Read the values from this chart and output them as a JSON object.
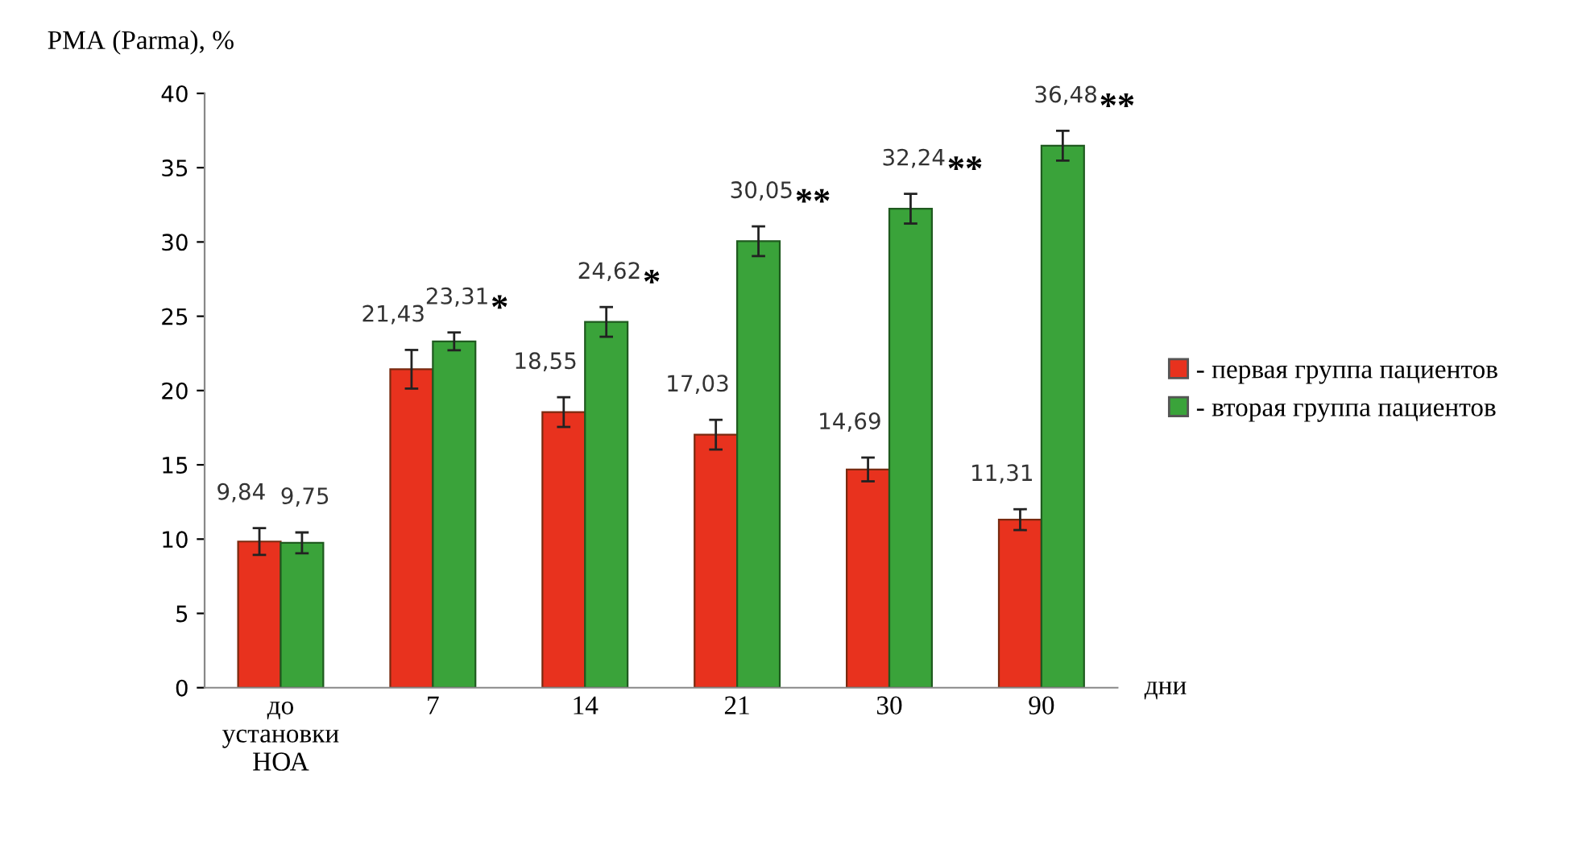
{
  "chart_data": {
    "type": "bar",
    "ylabel": "РМА (Parma), %",
    "xlabel": "дни",
    "categories": [
      "до\nустановки\nНОА",
      "7",
      "14",
      "21",
      "30",
      "90"
    ],
    "series": [
      {
        "name": "- первая группа пациентов",
        "color": "#e8321e",
        "values": [
          9.84,
          21.43,
          18.55,
          17.03,
          14.69,
          11.31
        ],
        "errors": [
          0.9,
          1.3,
          1.0,
          1.0,
          0.8,
          0.7
        ],
        "value_labels": [
          "9,84",
          "21,43",
          "18,55",
          "17,03",
          "14,69",
          "11,31"
        ]
      },
      {
        "name": "- вторая группа пациентов",
        "color": "#3aa33a",
        "values": [
          9.75,
          23.31,
          24.62,
          30.05,
          32.24,
          36.48
        ],
        "errors": [
          0.7,
          0.6,
          1.0,
          1.0,
          1.0,
          1.0
        ],
        "value_labels": [
          "9,75",
          "23,31",
          "24,62",
          "30,05",
          "32,24",
          "36,48"
        ]
      }
    ],
    "ylim": [
      0,
      40
    ],
    "yticks": [
      0,
      5,
      10,
      15,
      20,
      25,
      30,
      35,
      40
    ],
    "annotations": [
      "*",
      "*",
      "**",
      "**",
      "**"
    ],
    "grid": false,
    "legend": "right"
  }
}
